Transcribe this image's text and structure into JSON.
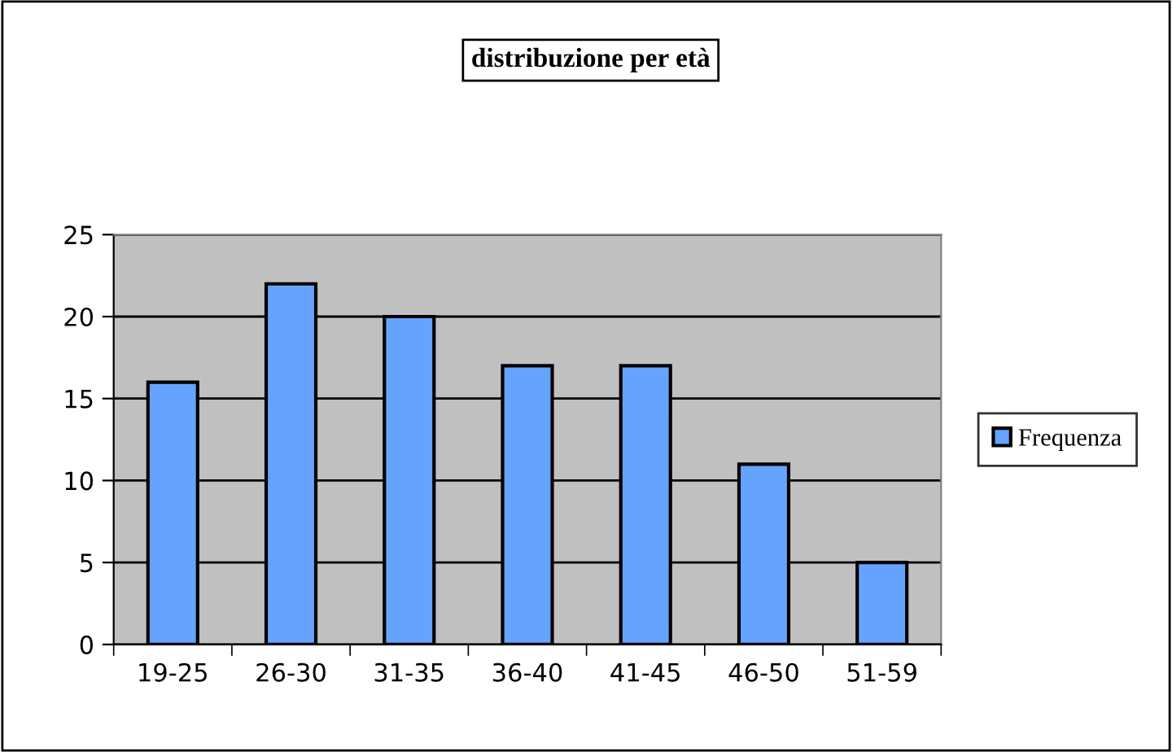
{
  "chart_data": {
    "type": "bar",
    "title": "distribuzione per età",
    "categories": [
      "19-25",
      "26-30",
      "31-35",
      "36-40",
      "41-45",
      "46-50",
      "51-59"
    ],
    "series": [
      {
        "name": "Frequenza",
        "color": "#66a3ff",
        "values": [
          16,
          22,
          20,
          17,
          17,
          11,
          5
        ]
      }
    ],
    "ylim": [
      0,
      25
    ],
    "yticks": [
      0,
      5,
      10,
      15,
      20,
      25
    ],
    "grid": "y",
    "legend": "right"
  }
}
